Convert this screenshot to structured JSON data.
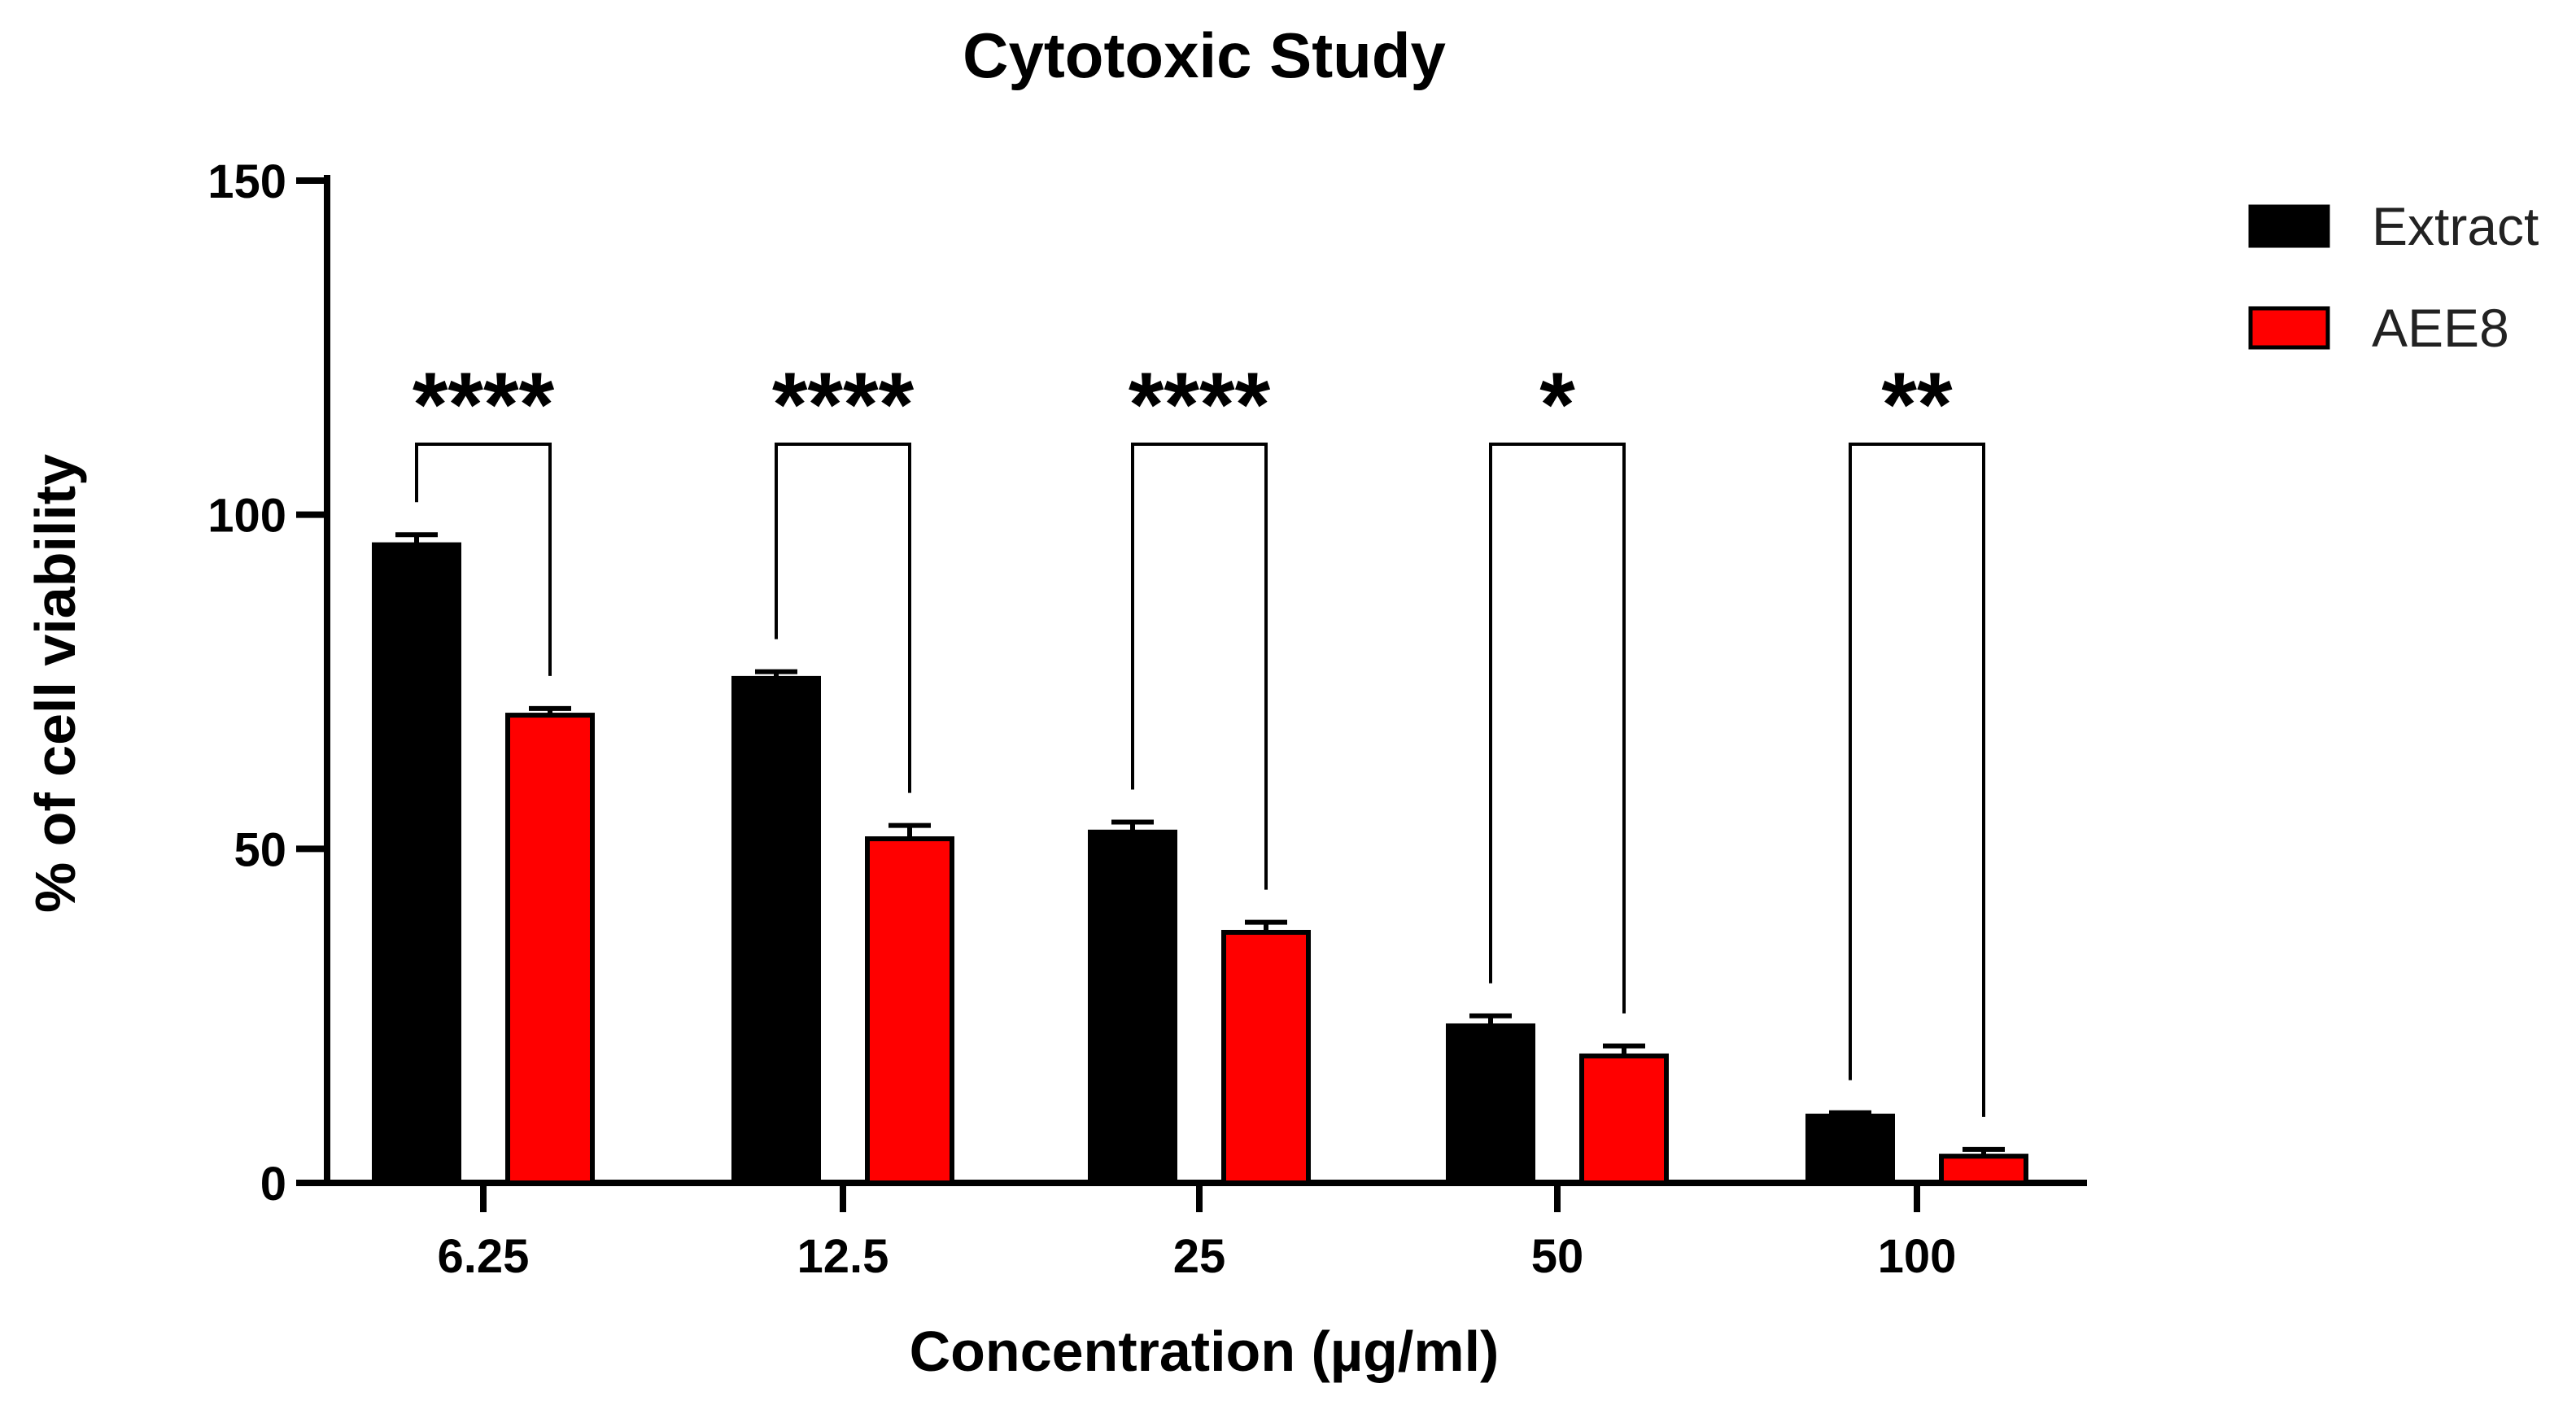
{
  "chart_data": {
    "type": "bar",
    "title": "Cytotoxic Study",
    "xlabel": "Concentration (µg/ml)",
    "ylabel": "% of cell viability",
    "ylim": [
      0,
      150
    ],
    "yticks": [
      0,
      50,
      100,
      150
    ],
    "ytick_labels": [
      "0",
      "50",
      "100",
      "150"
    ],
    "categories": [
      "6.25",
      "12.5",
      "25",
      "50",
      "100"
    ],
    "series": [
      {
        "name": "Extract",
        "color": "#000000",
        "values": [
          95.5,
          75.5,
          52.5,
          23.5,
          10
        ],
        "errors": [
          1.5,
          1.0,
          1.5,
          1.5,
          0.5
        ]
      },
      {
        "name": "AEE8",
        "color": "#ff0000",
        "values": [
          70,
          51.5,
          37.5,
          19,
          4
        ],
        "errors": [
          1.0,
          2.0,
          1.5,
          1.5,
          1.0
        ]
      }
    ],
    "significance": [
      "****",
      "****",
      "****",
      "*",
      "**"
    ],
    "grid": false,
    "legend_position": "top-right"
  }
}
